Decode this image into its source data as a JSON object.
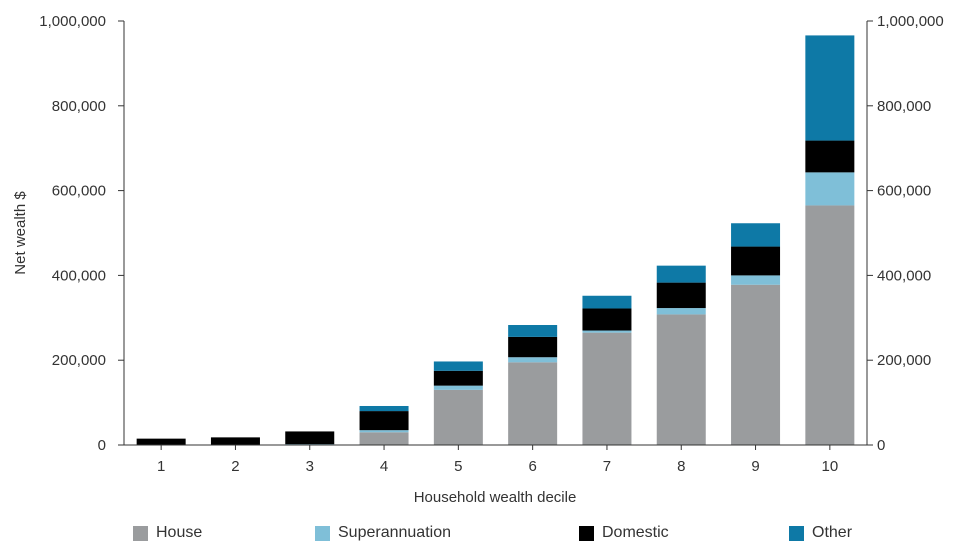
{
  "chart_data": {
    "type": "bar",
    "stacked": true,
    "categories": [
      "1",
      "2",
      "3",
      "4",
      "5",
      "6",
      "7",
      "8",
      "9",
      "10"
    ],
    "xlabel": "Household wealth decile",
    "ylabel": "Net wealth $",
    "ylim": [
      0,
      1000000
    ],
    "yticks": [
      0,
      200000,
      400000,
      600000,
      800000,
      1000000
    ],
    "ytick_labels": [
      "0",
      "200,000",
      "400,000",
      "600,000",
      "800,000",
      "1,000,000"
    ],
    "secondary_yaxis": true,
    "grid": false,
    "legend_position": "bottom",
    "series": [
      {
        "name": "House",
        "color": "#9a9c9e",
        "values": [
          0,
          0,
          0,
          30000,
          130000,
          195000,
          265000,
          308000,
          378000,
          565000
        ]
      },
      {
        "name": "Superannuation",
        "color": "#7fbfd8",
        "values": [
          0,
          0,
          2000,
          5000,
          10000,
          12000,
          5000,
          15000,
          22000,
          78000
        ]
      },
      {
        "name": "Domestic",
        "color": "#000000",
        "values": [
          15000,
          18000,
          30000,
          45000,
          35000,
          48000,
          52000,
          60000,
          68000,
          75000
        ]
      },
      {
        "name": "Other",
        "color": "#0e79a6",
        "values": [
          0,
          0,
          0,
          12000,
          22000,
          28000,
          30000,
          40000,
          55000,
          248000
        ]
      }
    ]
  }
}
